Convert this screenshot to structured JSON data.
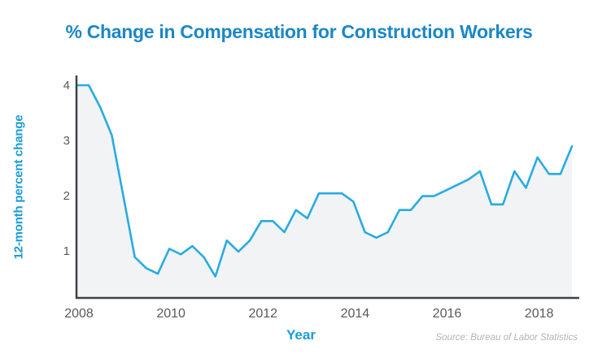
{
  "title": "% Change in Compensation for Construction Workers",
  "source_note": "Source: Bureau of Labor Statistics",
  "colors": {
    "title_blue": "#1b87c6",
    "axis_label_blue": "#199cd6",
    "line_cyan": "#29abe2",
    "area_fill": "#f2f3f5",
    "axis_line": "#414042",
    "tick_text": "#58595b",
    "source_gray": "#b1b3b6"
  },
  "chart_data": {
    "type": "area",
    "title": "% Change in Compensation for Construction Workers",
    "xlabel": "Year",
    "ylabel": "12-month percent change",
    "x_tick_labels": [
      "2008",
      "2010",
      "2012",
      "2014",
      "2016",
      "2018"
    ],
    "x_tick_years": [
      2008,
      2010,
      2012,
      2014,
      2016,
      2018
    ],
    "y_ticks": [
      1,
      2,
      3,
      4
    ],
    "ylim": [
      0.15,
      4.15
    ],
    "xlim": [
      2008.0,
      2018.9
    ],
    "grid": false,
    "legend": "none",
    "series": [
      {
        "name": "12-month percent change",
        "x": [
          2008.0,
          2008.25,
          2008.5,
          2008.75,
          2009.0,
          2009.25,
          2009.5,
          2009.75,
          2010.0,
          2010.25,
          2010.5,
          2010.75,
          2011.0,
          2011.25,
          2011.5,
          2011.75,
          2012.0,
          2012.25,
          2012.5,
          2012.75,
          2013.0,
          2013.25,
          2013.5,
          2013.75,
          2014.0,
          2014.25,
          2014.5,
          2014.75,
          2015.0,
          2015.25,
          2015.5,
          2015.75,
          2016.0,
          2016.25,
          2016.5,
          2016.75,
          2017.0,
          2017.25,
          2017.5,
          2017.75,
          2018.0,
          2018.25,
          2018.5,
          2018.75
        ],
        "values": [
          4.0,
          4.0,
          3.6,
          3.1,
          2.0,
          0.9,
          0.7,
          0.6,
          1.05,
          0.95,
          1.1,
          0.9,
          0.55,
          1.2,
          1.0,
          1.2,
          1.55,
          1.55,
          1.35,
          1.75,
          1.6,
          2.05,
          2.05,
          2.05,
          1.9,
          1.35,
          1.25,
          1.35,
          1.75,
          1.75,
          2.0,
          2.0,
          2.1,
          2.2,
          2.3,
          2.45,
          1.85,
          1.85,
          2.45,
          2.15,
          2.7,
          2.4,
          2.4,
          2.9
        ]
      }
    ]
  }
}
